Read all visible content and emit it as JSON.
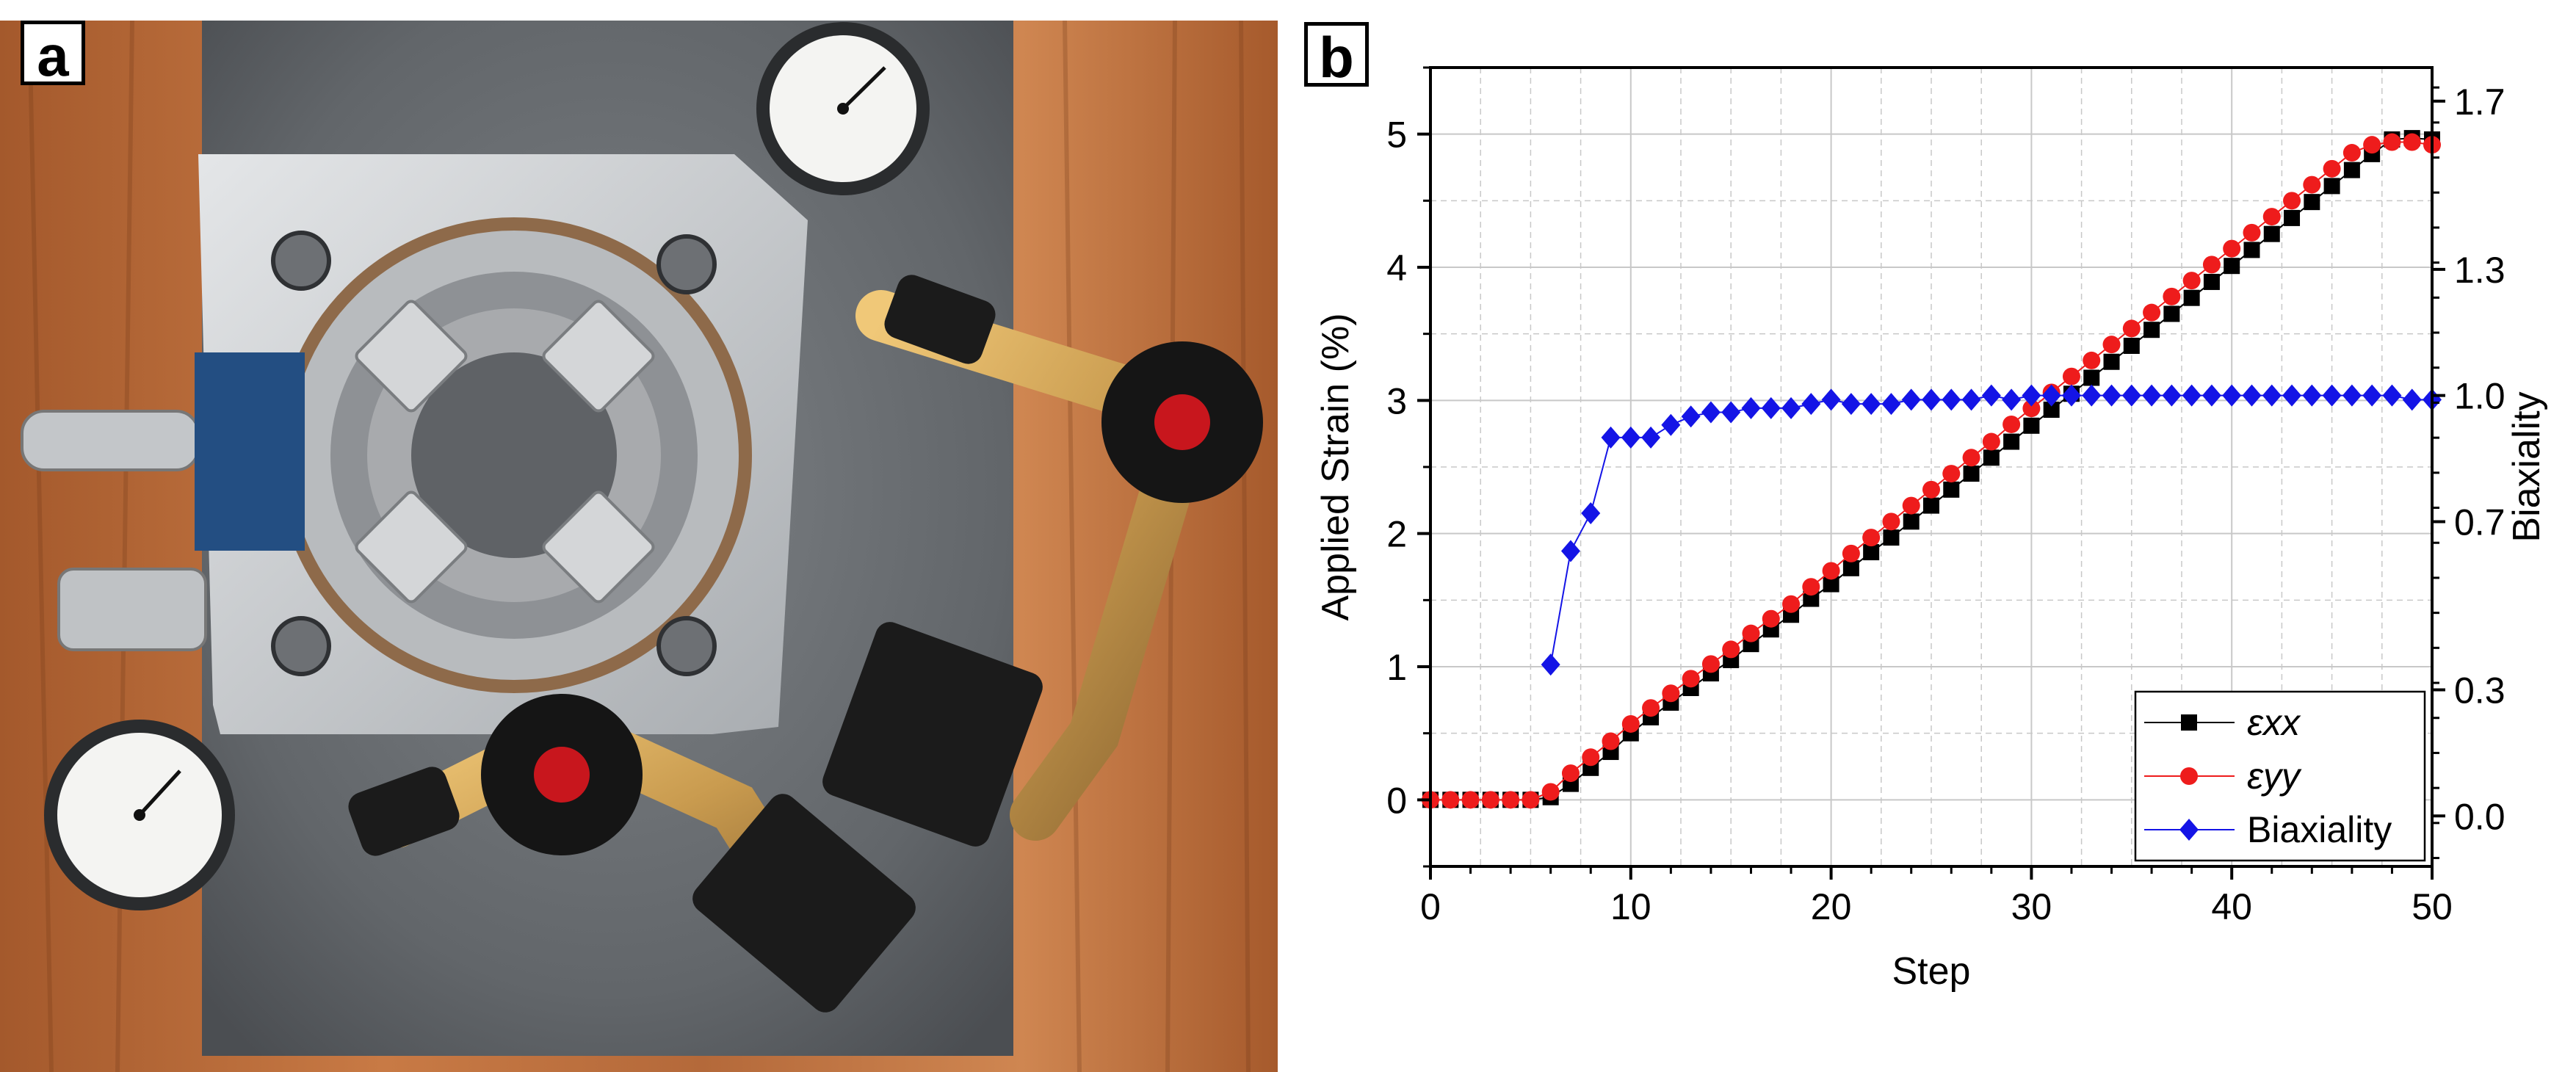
{
  "panels": {
    "a": "a",
    "b": "b"
  },
  "photo": {
    "description_icons": [
      "biaxial-stretcher-icon",
      "dial-gauge-icon",
      "clamp-knob-icon"
    ]
  },
  "colors": {
    "exx": "#000000",
    "eyy": "#ee1c1c",
    "biax": "#1414e6",
    "grid": "#c8c8c8"
  },
  "chart_data": {
    "type": "scatter",
    "xlabel": "Step",
    "ylabel": "Applied Strain (%)",
    "y2label": "Biaxiality",
    "xlim": [
      0,
      50
    ],
    "ylim": [
      -0.5,
      5.5
    ],
    "y2lim": [
      -0.12,
      1.78
    ],
    "x_ticks": [
      "0",
      "10",
      "20",
      "30",
      "40",
      "50"
    ],
    "y_ticks": [
      "0",
      "1",
      "2",
      "3",
      "4",
      "5"
    ],
    "y2_ticks": [
      "0.0",
      "0.3",
      "0.7",
      "1.0",
      "1.3",
      "1.7"
    ],
    "y2_tick_values": [
      0.0,
      0.3,
      0.7,
      1.0,
      1.3,
      1.7
    ],
    "grid": true,
    "legend_position": "bottom-right",
    "legend": [
      {
        "label": "εxx",
        "marker": "square",
        "color": "#000000"
      },
      {
        "label": "εyy",
        "marker": "circle",
        "color": "#ee1c1c"
      },
      {
        "label": "Biaxiality",
        "marker": "diamond",
        "color": "#1414e6"
      }
    ],
    "series": [
      {
        "name": "εxx",
        "axis": "left",
        "x": [
          0,
          1,
          2,
          3,
          4,
          5,
          6,
          7,
          8,
          9,
          10,
          11,
          12,
          13,
          14,
          15,
          16,
          17,
          18,
          19,
          20,
          21,
          22,
          23,
          24,
          25,
          26,
          27,
          28,
          29,
          30,
          31,
          32,
          33,
          34,
          35,
          36,
          37,
          38,
          39,
          40,
          41,
          42,
          43,
          44,
          45,
          46,
          47,
          48,
          49,
          50
        ],
        "y": [
          0,
          0,
          0,
          0,
          0,
          0,
          0.02,
          0.12,
          0.24,
          0.36,
          0.5,
          0.62,
          0.73,
          0.84,
          0.95,
          1.05,
          1.17,
          1.28,
          1.39,
          1.51,
          1.62,
          1.74,
          1.86,
          1.97,
          2.09,
          2.21,
          2.33,
          2.45,
          2.57,
          2.69,
          2.81,
          2.93,
          3.05,
          3.17,
          3.29,
          3.41,
          3.53,
          3.65,
          3.77,
          3.89,
          4.01,
          4.13,
          4.25,
          4.37,
          4.49,
          4.61,
          4.73,
          4.85,
          4.96,
          4.97,
          4.96
        ]
      },
      {
        "name": "εyy",
        "axis": "left",
        "x": [
          0,
          1,
          2,
          3,
          4,
          5,
          6,
          7,
          8,
          9,
          10,
          11,
          12,
          13,
          14,
          15,
          16,
          17,
          18,
          19,
          20,
          21,
          22,
          23,
          24,
          25,
          26,
          27,
          28,
          29,
          30,
          31,
          32,
          33,
          34,
          35,
          36,
          37,
          38,
          39,
          40,
          41,
          42,
          43,
          44,
          45,
          46,
          47,
          48,
          49,
          50
        ],
        "y": [
          0,
          0,
          0,
          0,
          0,
          0,
          0.06,
          0.2,
          0.32,
          0.44,
          0.57,
          0.69,
          0.8,
          0.91,
          1.02,
          1.13,
          1.25,
          1.36,
          1.47,
          1.6,
          1.72,
          1.85,
          1.97,
          2.09,
          2.21,
          2.33,
          2.45,
          2.57,
          2.69,
          2.82,
          2.94,
          3.06,
          3.18,
          3.3,
          3.42,
          3.54,
          3.66,
          3.78,
          3.9,
          4.02,
          4.14,
          4.26,
          4.38,
          4.5,
          4.62,
          4.74,
          4.86,
          4.92,
          4.94,
          4.94,
          4.92
        ]
      },
      {
        "name": "Biaxiality",
        "axis": "right",
        "x": [
          6,
          7,
          8,
          9,
          10,
          11,
          12,
          13,
          14,
          15,
          16,
          17,
          18,
          19,
          20,
          21,
          22,
          23,
          24,
          25,
          26,
          27,
          28,
          29,
          30,
          31,
          32,
          33,
          34,
          35,
          36,
          37,
          38,
          39,
          40,
          41,
          42,
          43,
          44,
          45,
          46,
          47,
          48,
          49,
          50
        ],
        "y": [
          0.36,
          0.63,
          0.72,
          0.9,
          0.9,
          0.9,
          0.93,
          0.95,
          0.96,
          0.96,
          0.97,
          0.97,
          0.97,
          0.98,
          0.99,
          0.98,
          0.98,
          0.98,
          0.99,
          0.99,
          0.99,
          0.99,
          1.0,
          0.99,
          1.0,
          1.0,
          1.0,
          1.0,
          1.0,
          1.0,
          1.0,
          1.0,
          1.0,
          1.0,
          1.0,
          1.0,
          1.0,
          1.0,
          1.0,
          1.0,
          1.0,
          1.0,
          1.0,
          0.99,
          0.99
        ]
      }
    ]
  }
}
